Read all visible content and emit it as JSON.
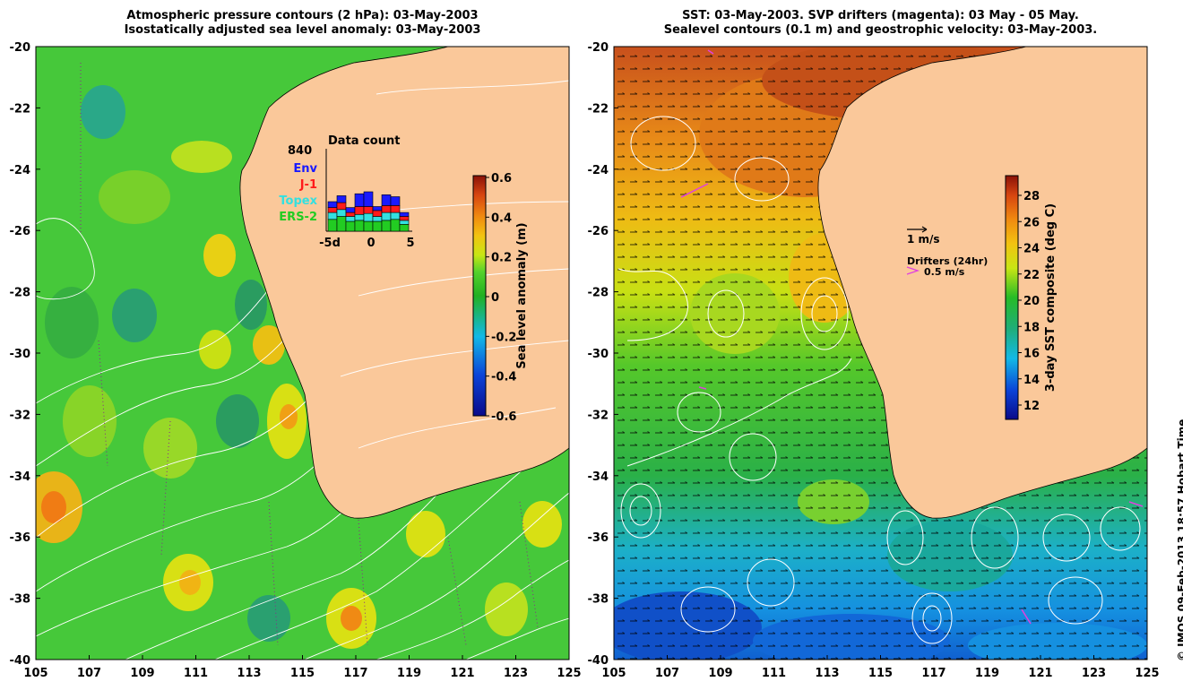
{
  "left_panel": {
    "title_line1": "Atmospheric pressure contours (2 hPa): 03-May-2003",
    "title_line2": "Isostatically adjusted sea level anomaly: 03-May-2003",
    "colorbar": {
      "label": "Sea level anomaly (m)",
      "ticks": [
        "0.6",
        "0.4",
        "0.2",
        "0",
        "-0.2",
        "-0.4",
        "-0.6"
      ]
    },
    "inset": {
      "title": "Data count",
      "max_label": "840",
      "x_ticks": [
        "-5d",
        "0",
        "5"
      ],
      "legend": [
        {
          "name": "Env",
          "color": "#1a1aff"
        },
        {
          "name": "J-1",
          "color": "#ff1a1a"
        },
        {
          "name": "Topex",
          "color": "#33e0e0"
        },
        {
          "name": "ERS-2",
          "color": "#22cc22"
        }
      ]
    }
  },
  "right_panel": {
    "title_line1": "SST: 03-May-2003. SVP drifters (magenta): 03 May - 05 May.",
    "title_line2": "Sealevel contours (0.1 m) and geostrophic velocity: 03-May-2003.",
    "colorbar": {
      "label": "3-day SST composite (deg C)",
      "ticks": [
        "28",
        "26",
        "24",
        "22",
        "20",
        "18",
        "16",
        "14",
        "12"
      ]
    },
    "arrow_label": "1 m/s",
    "drifters_label": "Drifters (24hr)",
    "drifters_speed": "0.5 m/s"
  },
  "axes": {
    "lat_ticks": [
      "-20",
      "-22",
      "-24",
      "-26",
      "-28",
      "-30",
      "-32",
      "-34",
      "-36",
      "-38",
      "-40"
    ],
    "lon_ticks": [
      "105",
      "107",
      "109",
      "111",
      "113",
      "115",
      "117",
      "119",
      "121",
      "123",
      "125"
    ]
  },
  "copyright": "© IMOS 09-Feb-2013 18:57 Hobart Time"
}
